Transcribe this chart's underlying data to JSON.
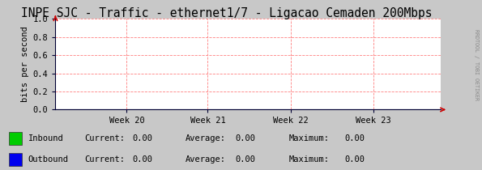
{
  "title": "INPE SJC - Traffic - ethernet1/7 - Ligacao Cemaden 200Mbps",
  "ylabel": "bits per second",
  "xlim": [
    0,
    1
  ],
  "ylim": [
    0.0,
    1.0
  ],
  "yticks": [
    0.0,
    0.2,
    0.4,
    0.6,
    0.8,
    1.0
  ],
  "xtick_labels": [
    "Week 20",
    "Week 21",
    "Week 22",
    "Week 23"
  ],
  "xtick_positions": [
    0.185,
    0.395,
    0.61,
    0.825
  ],
  "bg_color": "#c8c8c8",
  "plot_bg_color": "#ffffff",
  "grid_color": "#ff8080",
  "title_fontsize": 10.5,
  "arrow_color": "#cc0000",
  "border_color": "#000033",
  "legend_items": [
    {
      "label": "Inbound",
      "color": "#00cc00"
    },
    {
      "label": "Outbound",
      "color": "#0000ee"
    }
  ],
  "legend_stats": [
    {
      "current": "0.00",
      "average": "0.00",
      "maximum": "0.00"
    },
    {
      "current": "0.00",
      "average": "0.00",
      "maximum": "0.00"
    }
  ],
  "watermark": "RRDTOOL / TOBI OETIKER",
  "font_family": "monospace",
  "tick_fontsize": 7.5,
  "legend_fontsize": 7.5
}
